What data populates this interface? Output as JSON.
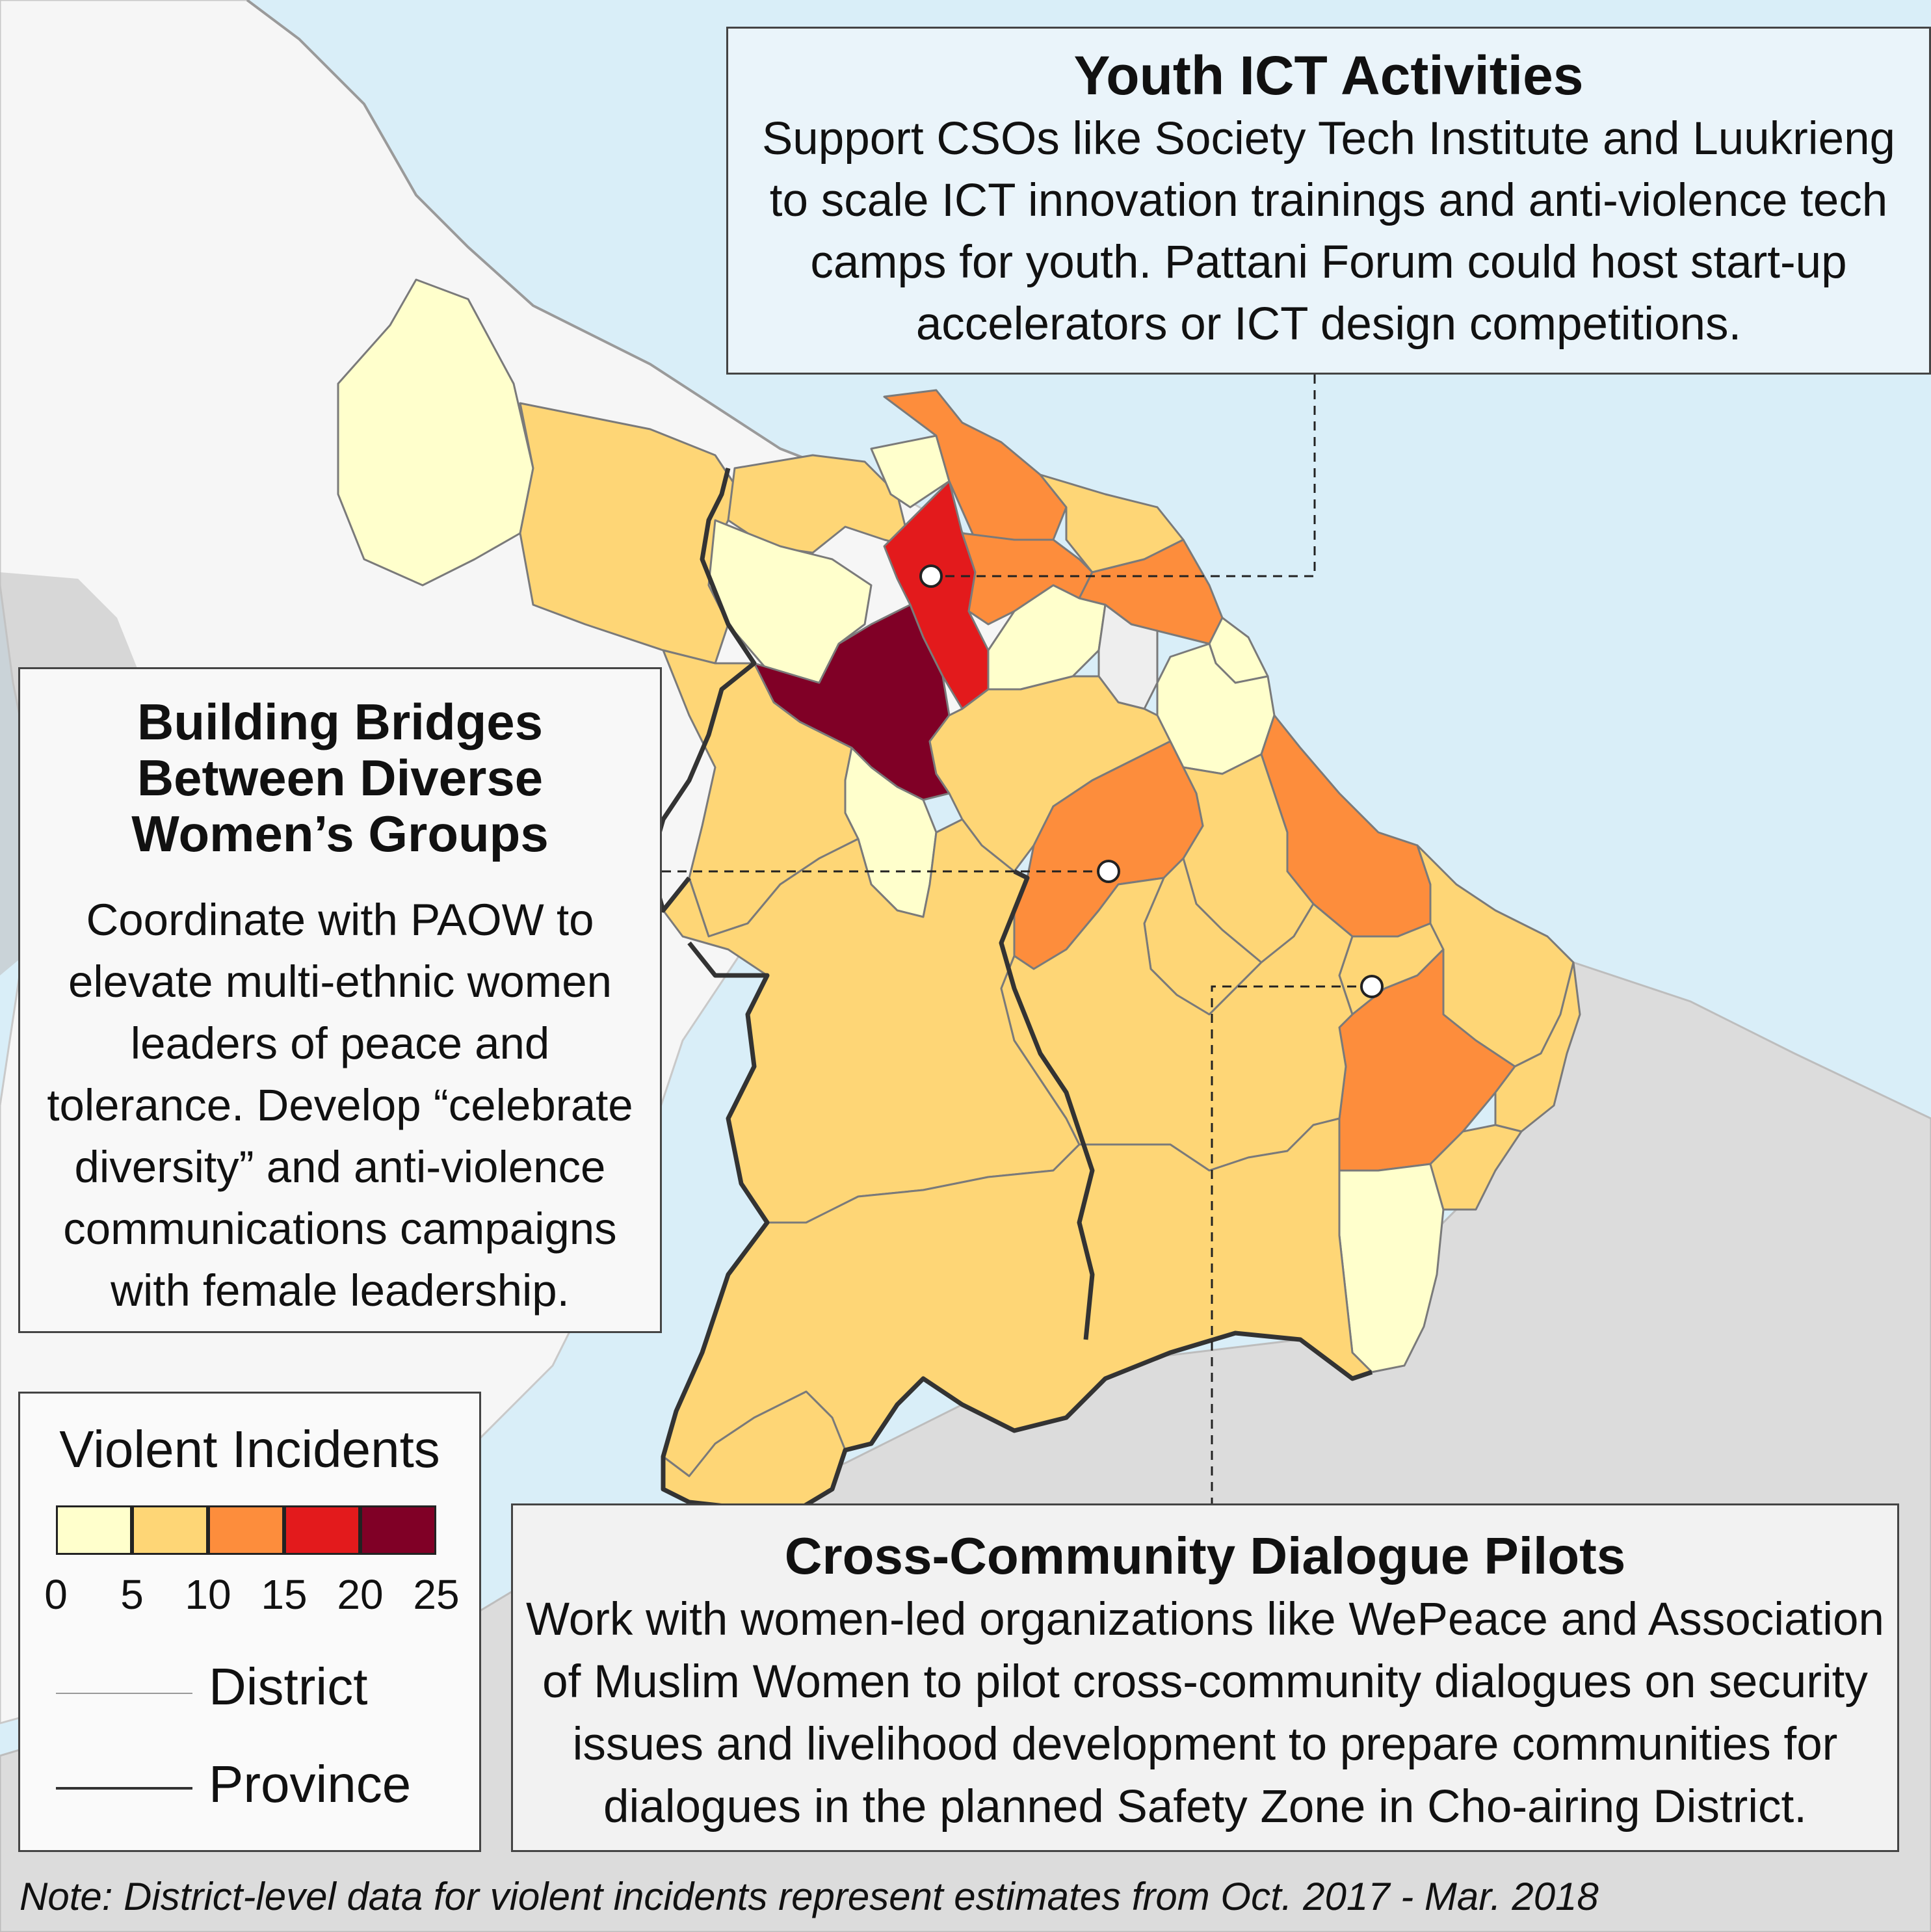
{
  "callouts": {
    "youth_ict": {
      "title": "Youth ICT Activities",
      "body": "Support CSOs like Society Tech Institute and Luukrieng to scale ICT innovation trainings and anti-violence tech camps for youth. Pattani Forum could host start-up accelerators or ICT design competitions."
    },
    "building_bridges": {
      "title": "Building Bridges Between Diverse Women’s Groups",
      "body": "Coordinate with PAOW to elevate multi-ethnic women leaders of peace and tolerance. Develop “celebrate diversity” and anti-violence communications campaigns with female leadership."
    },
    "dialogue_pilots": {
      "title": "Cross-Community Dialogue Pilots",
      "body": "Work with women-led organizations like WePeace and Association of Muslim Women to pilot cross-community dialogues on security issues and livelihood development to prepare communities for dialogues in the planned Safety Zone in Cho-airing District."
    }
  },
  "legend": {
    "title": "Violent Incidents",
    "classes": [
      {
        "color": "#ffffcc",
        "min": 0,
        "max": 5
      },
      {
        "color": "#fed676",
        "min": 5,
        "max": 10
      },
      {
        "color": "#fd8d3c",
        "min": 10,
        "max": 15
      },
      {
        "color": "#e31a1c",
        "min": 15,
        "max": 20
      },
      {
        "color": "#800026",
        "min": 20,
        "max": 25
      }
    ],
    "ticks": [
      "0",
      "5",
      "10",
      "15",
      "20",
      "25"
    ],
    "district_label": "District",
    "province_label": "Province"
  },
  "note": "Note: District-level data for violent incidents represent estimates from Oct. 2017 - Mar. 2018",
  "colors": {
    "sea": "#d9eef8",
    "neighbor_land": "#dcdcdc",
    "neighbor_land_light": "#f6f6f6",
    "district_border": "#777777",
    "province_border": "#333333"
  }
}
